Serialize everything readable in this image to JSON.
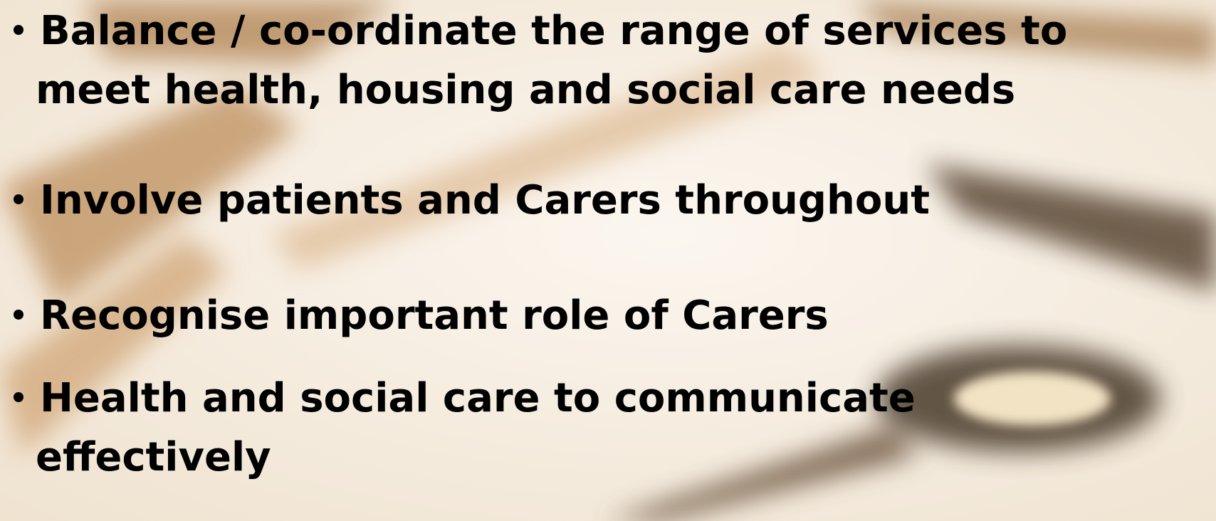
{
  "bullets": [
    {
      "lines": [
        "Balance / co-ordinate the range of services to",
        "meet health, housing and social care needs"
      ]
    },
    {
      "lines": [
        "Involve patients and Carers throughout"
      ]
    },
    {
      "lines": [
        "Recognise important role of Carers"
      ]
    },
    {
      "lines": [
        "Health and social care to communicate",
        "effectively"
      ]
    }
  ]
}
